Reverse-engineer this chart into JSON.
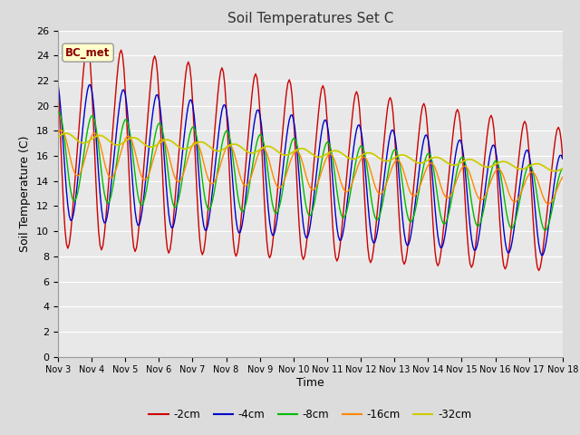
{
  "title": "Soil Temperatures Set C",
  "xlabel": "Time",
  "ylabel": "Soil Temperature (C)",
  "ylim": [
    0,
    26
  ],
  "background_color": "#dcdcdc",
  "plot_bg_color": "#e8e8e8",
  "grid_color": "#ffffff",
  "legend_label": "BC_met",
  "series_colors": {
    "-2cm": "#cc0000",
    "-4cm": "#0000cc",
    "-8cm": "#00bb00",
    "-16cm": "#ff8800",
    "-32cm": "#cccc00"
  },
  "xtick_labels": [
    "Nov 3",
    "Nov 4",
    "Nov 5",
    "Nov 6",
    "Nov 7",
    "Nov 8",
    "Nov 9",
    "Nov 10",
    "Nov 11",
    "Nov 12",
    "Nov 13",
    "Nov 14",
    "Nov 15",
    "Nov 16",
    "Nov 17",
    "Nov 18"
  ],
  "xtick_positions": [
    0,
    24,
    48,
    72,
    96,
    120,
    144,
    168,
    192,
    216,
    240,
    264,
    288,
    312,
    336,
    360
  ]
}
